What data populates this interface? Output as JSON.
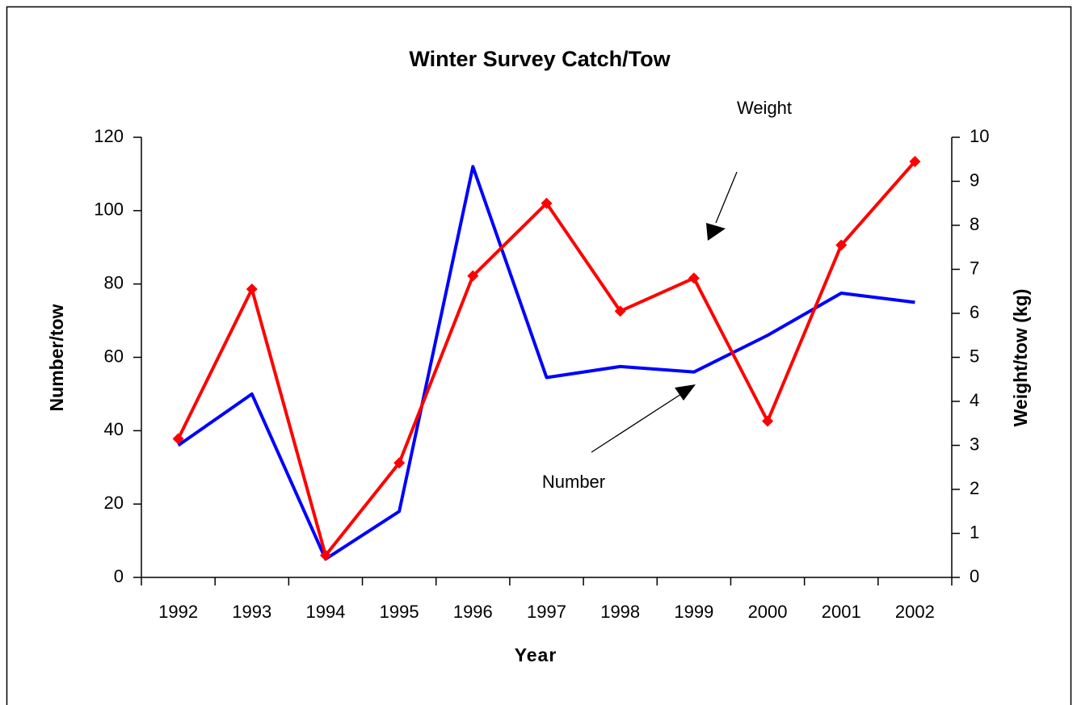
{
  "chart_data": {
    "type": "line",
    "title": "Winter Survey Catch/Tow",
    "x_label": "Year",
    "y_label": "Number/tow",
    "y2_label": "Weight/tow (kg)",
    "categories": [
      "1992",
      "1993",
      "1994",
      "1995",
      "1996",
      "1997",
      "1998",
      "1999",
      "2000",
      "2001",
      "2002"
    ],
    "series": [
      {
        "name": "Number",
        "color": "#0000ff",
        "marker": false,
        "values": [
          36,
          50,
          5,
          18,
          112,
          54.5,
          57.5,
          56,
          66,
          77.5,
          75
        ]
      },
      {
        "name": "Weight",
        "color": "#ff0000",
        "marker": true,
        "axis": "y2",
        "values": [
          3.15,
          6.55,
          0.5,
          2.6,
          6.85,
          8.5,
          6.05,
          6.8,
          3.55,
          7.55,
          9.45
        ]
      }
    ],
    "ylim": [
      0,
      120
    ],
    "yticks": [
      0,
      20,
      40,
      60,
      80,
      100,
      120
    ],
    "y2lim": [
      0,
      10
    ],
    "y2ticks": [
      0,
      1,
      2,
      3,
      4,
      5,
      6,
      7,
      8,
      9,
      10
    ],
    "grid": false
  }
}
